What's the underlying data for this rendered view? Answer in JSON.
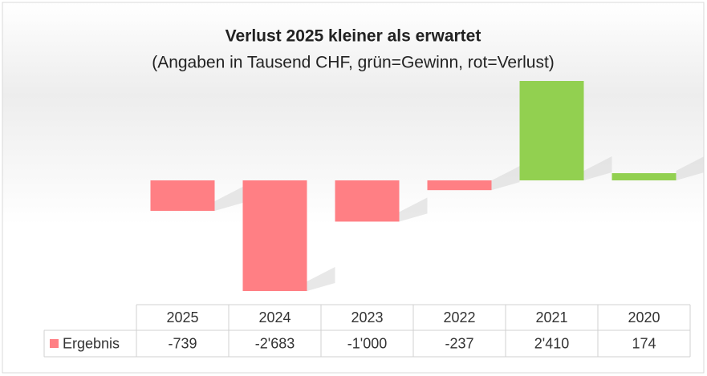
{
  "chart_data": {
    "type": "bar",
    "title": "Verlust 2025 kleiner als erwartet",
    "subtitle": "(Angaben in Tausend CHF, grün=Gewinn, rot=Verlust)",
    "categories": [
      "2025",
      "2024",
      "2023",
      "2022",
      "2021",
      "2020"
    ],
    "series": [
      {
        "name": "Ergebnis",
        "color": "#ff7f84",
        "values": [
          -739,
          -2683,
          -1000,
          -237,
          2410,
          174
        ],
        "value_labels": [
          "-739",
          "-2'683",
          "-1'000",
          "-237",
          "2'410",
          "174"
        ],
        "colors": [
          "#ff7f84",
          "#ff7f84",
          "#ff7f84",
          "#ff7f84",
          "#92d050",
          "#92d050"
        ]
      }
    ]
  }
}
